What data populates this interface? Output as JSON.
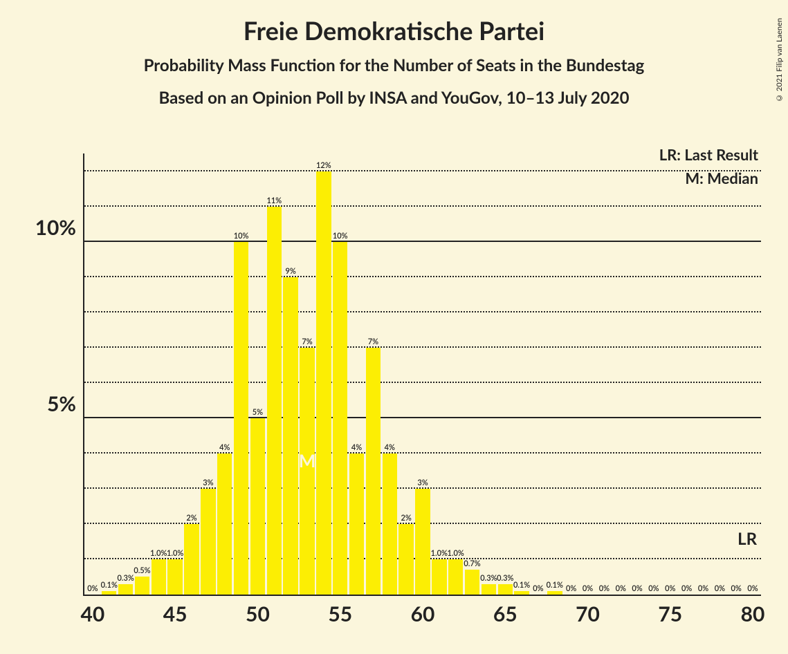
{
  "title": "Freie Demokratische Partei",
  "subtitle1": "Probability Mass Function for the Number of Seats in the Bundestag",
  "subtitle2": "Based on an Opinion Poll by INSA and YouGov, 10–13 July 2020",
  "copyright": "© 2021 Filip van Laenen",
  "legend_lr": "LR: Last Result",
  "legend_m": "M: Median",
  "marker_m": "M",
  "marker_lr": "LR",
  "chart": {
    "type": "bar",
    "background_color": "#fbf6dc",
    "bar_color": "#fcee03",
    "axis_color": "#222222",
    "grid_major_color": "#222222",
    "grid_minor_color": "#222222",
    "xmin": 40,
    "xmax": 80,
    "ymin": 0,
    "ymax": 12.5,
    "y_major_ticks": [
      5,
      10
    ],
    "y_minor_ticks": [
      1,
      2,
      3,
      4,
      6,
      7,
      8,
      9,
      11,
      12
    ],
    "y_tick_labels": {
      "5": "5%",
      "10": "10%"
    },
    "x_major_ticks": [
      40,
      45,
      50,
      55,
      60,
      65,
      70,
      75,
      80
    ],
    "bar_width_ratio": 0.9,
    "title_fontsize": 36,
    "subtitle_fontsize": 24,
    "axis_label_fontsize": 30,
    "bar_label_fontsize": 11,
    "legend_fontsize": 22,
    "median_seat": 53,
    "lr_seat": 80,
    "lr_y": 1.3,
    "bars": [
      {
        "x": 40,
        "y": 0,
        "label": "0%"
      },
      {
        "x": 41,
        "y": 0.1,
        "label": "0.1%"
      },
      {
        "x": 42,
        "y": 0.3,
        "label": "0.3%"
      },
      {
        "x": 43,
        "y": 0.5,
        "label": "0.5%"
      },
      {
        "x": 44,
        "y": 1.0,
        "label": "1.0%"
      },
      {
        "x": 45,
        "y": 1.0,
        "label": "1.0%"
      },
      {
        "x": 46,
        "y": 2,
        "label": "2%"
      },
      {
        "x": 47,
        "y": 3,
        "label": "3%"
      },
      {
        "x": 48,
        "y": 4,
        "label": "4%"
      },
      {
        "x": 49,
        "y": 10,
        "label": "10%"
      },
      {
        "x": 50,
        "y": 5,
        "label": "5%"
      },
      {
        "x": 51,
        "y": 11,
        "label": "11%"
      },
      {
        "x": 52,
        "y": 9,
        "label": "9%"
      },
      {
        "x": 53,
        "y": 7,
        "label": "7%"
      },
      {
        "x": 54,
        "y": 12,
        "label": "12%"
      },
      {
        "x": 55,
        "y": 10,
        "label": "10%"
      },
      {
        "x": 56,
        "y": 4,
        "label": "4%"
      },
      {
        "x": 57,
        "y": 7,
        "label": "7%"
      },
      {
        "x": 58,
        "y": 4,
        "label": "4%"
      },
      {
        "x": 59,
        "y": 2,
        "label": "2%"
      },
      {
        "x": 60,
        "y": 3,
        "label": "3%"
      },
      {
        "x": 61,
        "y": 1.0,
        "label": "1.0%"
      },
      {
        "x": 62,
        "y": 1.0,
        "label": "1.0%"
      },
      {
        "x": 63,
        "y": 0.7,
        "label": "0.7%"
      },
      {
        "x": 64,
        "y": 0.3,
        "label": "0.3%"
      },
      {
        "x": 65,
        "y": 0.3,
        "label": "0.3%"
      },
      {
        "x": 66,
        "y": 0.1,
        "label": "0.1%"
      },
      {
        "x": 67,
        "y": 0,
        "label": "0%"
      },
      {
        "x": 68,
        "y": 0.1,
        "label": "0.1%"
      },
      {
        "x": 69,
        "y": 0,
        "label": "0%"
      },
      {
        "x": 70,
        "y": 0,
        "label": "0%"
      },
      {
        "x": 71,
        "y": 0,
        "label": "0%"
      },
      {
        "x": 72,
        "y": 0,
        "label": "0%"
      },
      {
        "x": 73,
        "y": 0,
        "label": "0%"
      },
      {
        "x": 74,
        "y": 0,
        "label": "0%"
      },
      {
        "x": 75,
        "y": 0,
        "label": "0%"
      },
      {
        "x": 76,
        "y": 0,
        "label": "0%"
      },
      {
        "x": 77,
        "y": 0,
        "label": "0%"
      },
      {
        "x": 78,
        "y": 0,
        "label": "0%"
      },
      {
        "x": 79,
        "y": 0,
        "label": "0%"
      },
      {
        "x": 80,
        "y": 0,
        "label": "0%"
      }
    ]
  }
}
